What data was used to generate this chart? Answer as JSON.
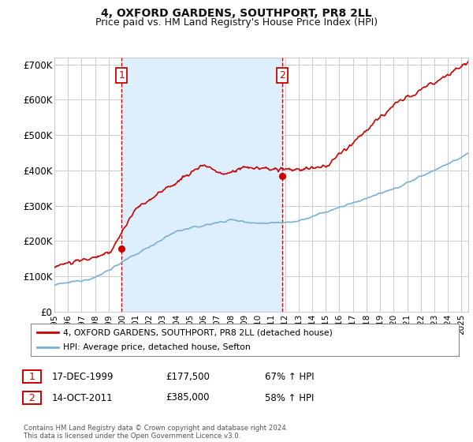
{
  "title": "4, OXFORD GARDENS, SOUTHPORT, PR8 2LL",
  "subtitle": "Price paid vs. HM Land Registry's House Price Index (HPI)",
  "title_fontsize": 10,
  "subtitle_fontsize": 9,
  "ylim": [
    0,
    720000
  ],
  "yticks": [
    0,
    100000,
    200000,
    300000,
    400000,
    500000,
    600000,
    700000
  ],
  "ytick_labels": [
    "£0",
    "£100K",
    "£200K",
    "£300K",
    "£400K",
    "£500K",
    "£600K",
    "£700K"
  ],
  "background_color": "#ffffff",
  "grid_color": "#cccccc",
  "hpi_color": "#7ab0d4",
  "price_color": "#cc0000",
  "shade_color": "#ddeeff",
  "sale1_year": 1999.96,
  "sale1_price": 177500,
  "sale2_year": 2011.79,
  "sale2_price": 385000,
  "legend_label_price": "4, OXFORD GARDENS, SOUTHPORT, PR8 2LL (detached house)",
  "legend_label_hpi": "HPI: Average price, detached house, Sefton",
  "annotation1_date": "17-DEC-1999",
  "annotation1_price": "£177,500",
  "annotation1_pct": "67% ↑ HPI",
  "annotation2_date": "14-OCT-2011",
  "annotation2_price": "£385,000",
  "annotation2_pct": "58% ↑ HPI",
  "footer": "Contains HM Land Registry data © Crown copyright and database right 2024.\nThis data is licensed under the Open Government Licence v3.0.",
  "xmin": 1995.0,
  "xmax": 2025.5
}
